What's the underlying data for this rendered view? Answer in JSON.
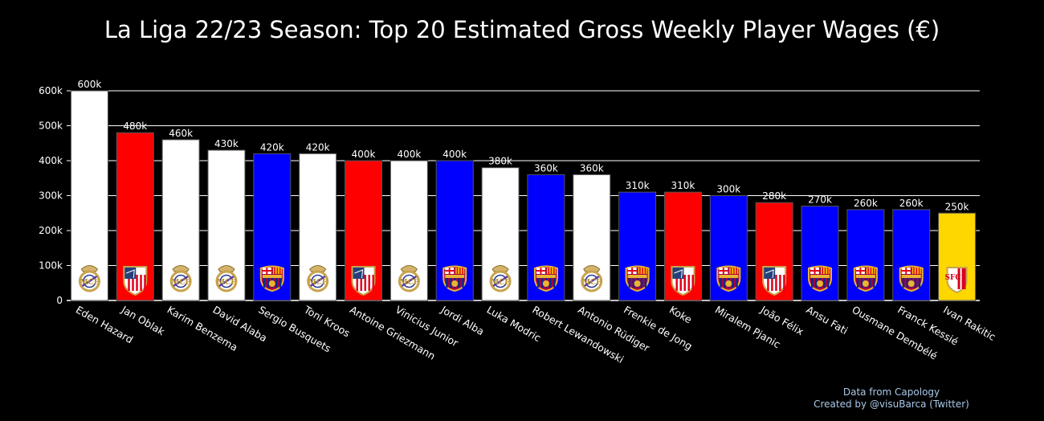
{
  "chart_data": {
    "type": "bar",
    "title": "La Liga 22/23 Season: Top 20 Estimated Gross Weekly Player Wages (€)",
    "xlabel": "",
    "ylabel": "",
    "ylim": [
      0,
      600000
    ],
    "yticks": [
      {
        "value": 0,
        "label": "0"
      },
      {
        "value": 100000,
        "label": "100k"
      },
      {
        "value": 200000,
        "label": "200k"
      },
      {
        "value": 300000,
        "label": "300k"
      },
      {
        "value": 400000,
        "label": "400k"
      },
      {
        "value": 500000,
        "label": "500k"
      },
      {
        "value": 600000,
        "label": "600k"
      }
    ],
    "grid": true,
    "legend": "none",
    "bars": [
      {
        "player": "Eden Hazard",
        "value": 600000,
        "label": "600k",
        "color": "#ffffff",
        "club_icon": "real-madrid-crest-icon"
      },
      {
        "player": "Jan Oblak",
        "value": 480000,
        "label": "480k",
        "color": "#ff0000",
        "club_icon": "atletico-madrid-crest-icon"
      },
      {
        "player": "Karim Benzema",
        "value": 460000,
        "label": "460k",
        "color": "#ffffff",
        "club_icon": "real-madrid-crest-icon"
      },
      {
        "player": "David Alaba",
        "value": 430000,
        "label": "430k",
        "color": "#ffffff",
        "club_icon": "real-madrid-crest-icon"
      },
      {
        "player": "Sergio Busquets",
        "value": 420000,
        "label": "420k",
        "color": "#0000ff",
        "club_icon": "barcelona-crest-icon"
      },
      {
        "player": "Toni Kroos",
        "value": 420000,
        "label": "420k",
        "color": "#ffffff",
        "club_icon": "real-madrid-crest-icon"
      },
      {
        "player": "Antoine Griezmann",
        "value": 400000,
        "label": "400k",
        "color": "#ff0000",
        "club_icon": "atletico-madrid-crest-icon"
      },
      {
        "player": "Vinicius Junior",
        "value": 400000,
        "label": "400k",
        "color": "#ffffff",
        "club_icon": "real-madrid-crest-icon"
      },
      {
        "player": "Jordi Alba",
        "value": 400000,
        "label": "400k",
        "color": "#0000ff",
        "club_icon": "barcelona-crest-icon"
      },
      {
        "player": "Luka Modric",
        "value": 380000,
        "label": "380k",
        "color": "#ffffff",
        "club_icon": "real-madrid-crest-icon"
      },
      {
        "player": "Robert Lewandowski",
        "value": 360000,
        "label": "360k",
        "color": "#0000ff",
        "club_icon": "barcelona-crest-icon"
      },
      {
        "player": "Antonio Rüdiger",
        "value": 360000,
        "label": "360k",
        "color": "#ffffff",
        "club_icon": "real-madrid-crest-icon"
      },
      {
        "player": "Frenkie de Jong",
        "value": 310000,
        "label": "310k",
        "color": "#0000ff",
        "club_icon": "barcelona-crest-icon"
      },
      {
        "player": "Koke",
        "value": 310000,
        "label": "310k",
        "color": "#ff0000",
        "club_icon": "atletico-madrid-crest-icon"
      },
      {
        "player": "Miralem Pjanic",
        "value": 300000,
        "label": "300k",
        "color": "#0000ff",
        "club_icon": "barcelona-crest-icon"
      },
      {
        "player": "João Félix",
        "value": 280000,
        "label": "280k",
        "color": "#ff0000",
        "club_icon": "atletico-madrid-crest-icon"
      },
      {
        "player": "Ansu Fati",
        "value": 270000,
        "label": "270k",
        "color": "#0000ff",
        "club_icon": "barcelona-crest-icon"
      },
      {
        "player": "Ousmane Dembélé",
        "value": 260000,
        "label": "260k",
        "color": "#0000ff",
        "club_icon": "barcelona-crest-icon"
      },
      {
        "player": "Franck Kessié",
        "value": 260000,
        "label": "260k",
        "color": "#0000ff",
        "club_icon": "barcelona-crest-icon"
      },
      {
        "player": "Ivan Rakitic",
        "value": 250000,
        "label": "250k",
        "color": "#ffd700",
        "club_icon": "sevilla-crest-icon"
      }
    ]
  },
  "credits": {
    "line1": "Data from Capology",
    "line2": "Created by @visuBarca (Twitter)"
  }
}
